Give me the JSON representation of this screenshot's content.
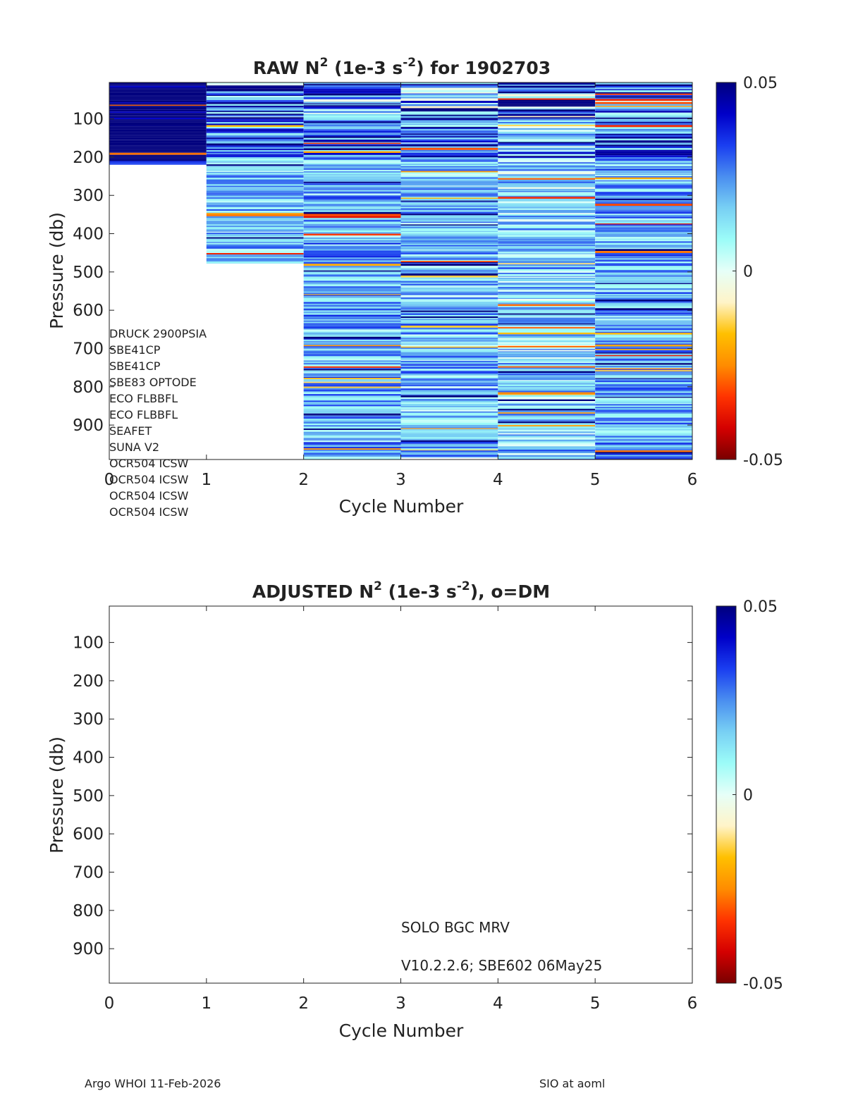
{
  "chart_data": [
    {
      "type": "heatmap",
      "title": {
        "prefix": "RAW N",
        "sup1": "2",
        "mid": " (1e-3 s",
        "sup2": "-2",
        "suffix": ") for 1902703"
      },
      "xlabel": "Cycle Number",
      "ylabel": "Pressure (db)",
      "xlim": [
        0,
        6
      ],
      "ylim": [
        5,
        990
      ],
      "y_reversed": true,
      "xticks": [
        "0",
        "1",
        "2",
        "3",
        "4",
        "5",
        "6"
      ],
      "yticks": [
        "100",
        "200",
        "300",
        "400",
        "500",
        "600",
        "700",
        "800",
        "900"
      ],
      "ytick_values": [
        100,
        200,
        300,
        400,
        500,
        600,
        700,
        800,
        900
      ],
      "colorbar": {
        "min": -0.05,
        "max": 0.05,
        "tick_labels": [
          "0.05",
          "0",
          "-0.05"
        ],
        "tick_values": [
          0.05,
          0,
          -0.05
        ]
      },
      "columns": [
        {
          "cycle": 0,
          "x_start": 0,
          "x_end": 1,
          "max_pressure": 220,
          "mean": 0.042,
          "spread": 0.014
        },
        {
          "cycle": 1,
          "x_start": 1,
          "x_end": 2,
          "max_pressure": 478,
          "mean": 0.018,
          "spread": 0.02
        },
        {
          "cycle": 2,
          "x_start": 2,
          "x_end": 3,
          "max_pressure": 990,
          "mean": 0.02,
          "spread": 0.022
        },
        {
          "cycle": 3,
          "x_start": 3,
          "x_end": 4,
          "max_pressure": 985,
          "mean": 0.018,
          "spread": 0.022
        },
        {
          "cycle": 4,
          "x_start": 4,
          "x_end": 5,
          "max_pressure": 990,
          "mean": 0.015,
          "spread": 0.024
        },
        {
          "cycle": 5,
          "x_start": 5,
          "x_end": 6,
          "max_pressure": 990,
          "mean": 0.02,
          "spread": 0.02
        }
      ],
      "sensor_annotations": [
        "DRUCK 2900PSIA",
        "SBE41CP",
        "SBE41CP",
        "SBE83 OPTODE",
        "ECO FLBBFL",
        "ECO FLBBFL",
        "SEAFET",
        "SUNA V2",
        "OCR504 ICSW",
        "OCR504 ICSW",
        "OCR504 ICSW",
        "OCR504 ICSW"
      ]
    },
    {
      "type": "heatmap",
      "title": {
        "prefix": "ADJUSTED N",
        "sup1": "2",
        "mid": " (1e-3 s",
        "sup2": "-2",
        "suffix": "), o=DM"
      },
      "xlabel": "Cycle Number",
      "ylabel": "Pressure (db)",
      "xlim": [
        0,
        6
      ],
      "ylim": [
        5,
        990
      ],
      "y_reversed": true,
      "xticks": [
        "0",
        "1",
        "2",
        "3",
        "4",
        "5",
        "6"
      ],
      "yticks": [
        "100",
        "200",
        "300",
        "400",
        "500",
        "600",
        "700",
        "800",
        "900"
      ],
      "ytick_values": [
        100,
        200,
        300,
        400,
        500,
        600,
        700,
        800,
        900
      ],
      "colorbar": {
        "min": -0.05,
        "max": 0.05,
        "tick_labels": [
          "0.05",
          "0",
          "-0.05"
        ],
        "tick_values": [
          0.05,
          0,
          -0.05
        ]
      },
      "columns": [],
      "annotations": [
        "SOLO BGC MRV",
        "V10.2.2.6; SBE602 06May25"
      ]
    }
  ],
  "footer": {
    "left": "Argo WHOI 11-Feb-2026",
    "right": "SIO at aoml"
  },
  "colormap": [
    "#7a0000",
    "#d40000",
    "#ff3300",
    "#ff8c00",
    "#ffc000",
    "#fff4c8",
    "#e6fff8",
    "#9cfcf8",
    "#78d0f4",
    "#4a8ef0",
    "#1a3ef0",
    "#0000c8",
    "#00007e"
  ]
}
